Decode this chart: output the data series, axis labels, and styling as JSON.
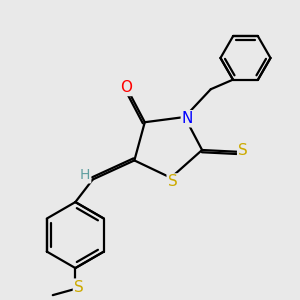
{
  "background_color": "#e9e9e9",
  "bond_width": 1.6,
  "atom_colors": {
    "O": "#ff0000",
    "N": "#0000ff",
    "S": "#ccaa00",
    "H": "#5f9ea0"
  },
  "font_size": 11,
  "figsize": [
    3.0,
    3.0
  ],
  "dpi": 100
}
